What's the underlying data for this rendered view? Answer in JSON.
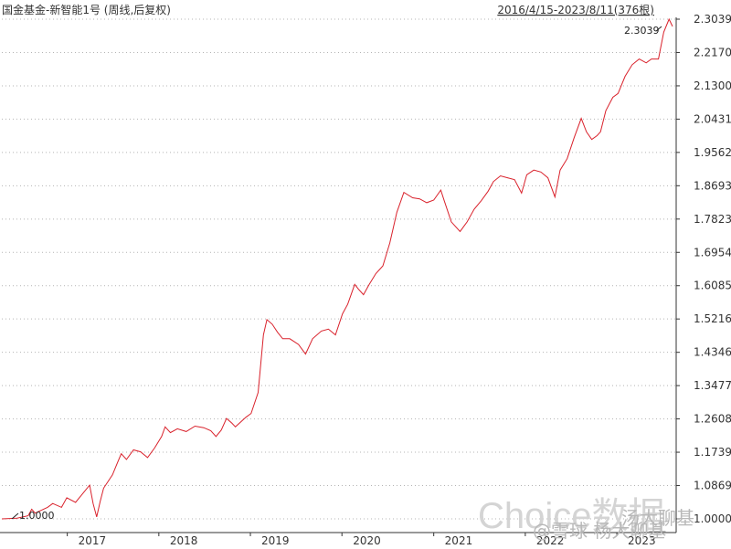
{
  "header": {
    "title": "国金基金-新智能1号 (周线,后复权)",
    "range": "2016/4/15-2023/8/11(376根)"
  },
  "watermark": {
    "brand": "Choice数据",
    "account": "@雪球 杨大聊基",
    "wechat_label": "汤大聊基"
  },
  "colors": {
    "line": "#d9212b",
    "grid": "#b4b4b4",
    "axis": "#333333",
    "background": "#ffffff"
  },
  "chart_data": {
    "type": "line",
    "title": "国金基金-新智能1号 (周线,后复权)",
    "xlabel": "",
    "ylabel": "",
    "grid": true,
    "x_range": [
      "2016-04-15",
      "2023-08-11"
    ],
    "bars_count": 376,
    "ylim": [
      1.0,
      2.3039
    ],
    "y_ticks": [
      "2.3039",
      "2.2170",
      "2.1300",
      "2.0431",
      "1.9562",
      "1.8693",
      "1.7823",
      "1.6954",
      "1.6085",
      "1.5216",
      "1.4346",
      "1.3477",
      "1.2608",
      "1.1739",
      "1.0869",
      "1.0000"
    ],
    "x_ticks": [
      "2017",
      "2018",
      "2019",
      "2020",
      "2021",
      "2022",
      "2023"
    ],
    "annotations": {
      "min_label": "1.0000",
      "max_label": "2.3039"
    },
    "series": [
      {
        "values": [
          [
            "2016-04-15",
            1.0
          ],
          [
            "2016-06-15",
            1.002
          ],
          [
            "2016-07-29",
            1.008
          ],
          [
            "2016-08-12",
            1.025
          ],
          [
            "2016-08-26",
            1.015
          ],
          [
            "2016-10-14",
            1.03
          ],
          [
            "2016-11-04",
            1.04
          ],
          [
            "2016-12-09",
            1.03
          ],
          [
            "2016-12-30",
            1.055
          ],
          [
            "2017-02-03",
            1.043
          ],
          [
            "2017-02-24",
            1.06
          ],
          [
            "2017-03-31",
            1.088
          ],
          [
            "2017-04-14",
            1.04
          ],
          [
            "2017-04-28",
            1.005
          ],
          [
            "2017-05-12",
            1.045
          ],
          [
            "2017-05-26",
            1.08
          ],
          [
            "2017-06-30",
            1.115
          ],
          [
            "2017-07-21",
            1.148
          ],
          [
            "2017-08-04",
            1.17
          ],
          [
            "2017-08-25",
            1.155
          ],
          [
            "2017-09-22",
            1.18
          ],
          [
            "2017-10-20",
            1.175
          ],
          [
            "2017-11-17",
            1.16
          ],
          [
            "2017-12-15",
            1.185
          ],
          [
            "2018-01-12",
            1.215
          ],
          [
            "2018-01-26",
            1.24
          ],
          [
            "2018-02-16",
            1.225
          ],
          [
            "2018-03-16",
            1.235
          ],
          [
            "2018-04-20",
            1.228
          ],
          [
            "2018-05-25",
            1.242
          ],
          [
            "2018-06-29",
            1.238
          ],
          [
            "2018-07-27",
            1.23
          ],
          [
            "2018-08-17",
            1.215
          ],
          [
            "2018-09-07",
            1.232
          ],
          [
            "2018-09-28",
            1.262
          ],
          [
            "2018-10-19",
            1.25
          ],
          [
            "2018-11-02",
            1.24
          ],
          [
            "2018-12-14",
            1.265
          ],
          [
            "2019-01-04",
            1.275
          ],
          [
            "2019-02-01",
            1.33
          ],
          [
            "2019-02-22",
            1.48
          ],
          [
            "2019-03-08",
            1.52
          ],
          [
            "2019-03-29",
            1.508
          ],
          [
            "2019-04-19",
            1.487
          ],
          [
            "2019-05-10",
            1.47
          ],
          [
            "2019-06-07",
            1.47
          ],
          [
            "2019-07-12",
            1.455
          ],
          [
            "2019-08-09",
            1.43
          ],
          [
            "2019-09-06",
            1.47
          ],
          [
            "2019-10-11",
            1.49
          ],
          [
            "2019-11-08",
            1.495
          ],
          [
            "2019-12-06",
            1.48
          ],
          [
            "2020-01-03",
            1.535
          ],
          [
            "2020-01-24",
            1.56
          ],
          [
            "2020-02-21",
            1.612
          ],
          [
            "2020-03-06",
            1.6
          ],
          [
            "2020-03-27",
            1.585
          ],
          [
            "2020-04-17",
            1.61
          ],
          [
            "2020-05-15",
            1.64
          ],
          [
            "2020-06-12",
            1.66
          ],
          [
            "2020-07-10",
            1.72
          ],
          [
            "2020-08-07",
            1.8
          ],
          [
            "2020-09-04",
            1.852
          ],
          [
            "2020-10-09",
            1.838
          ],
          [
            "2020-11-06",
            1.835
          ],
          [
            "2020-12-04",
            1.825
          ],
          [
            "2021-01-01",
            1.832
          ],
          [
            "2021-01-29",
            1.858
          ],
          [
            "2021-02-12",
            1.83
          ],
          [
            "2021-03-12",
            1.775
          ],
          [
            "2021-04-16",
            1.75
          ],
          [
            "2021-05-14",
            1.775
          ],
          [
            "2021-06-11",
            1.808
          ],
          [
            "2021-07-09",
            1.83
          ],
          [
            "2021-08-06",
            1.855
          ],
          [
            "2021-08-27",
            1.88
          ],
          [
            "2021-09-24",
            1.895
          ],
          [
            "2021-10-22",
            1.89
          ],
          [
            "2021-11-19",
            1.885
          ],
          [
            "2021-12-17",
            1.85
          ],
          [
            "2022-01-07",
            1.898
          ],
          [
            "2022-02-04",
            1.91
          ],
          [
            "2022-03-04",
            1.905
          ],
          [
            "2022-04-01",
            1.89
          ],
          [
            "2022-04-29",
            1.84
          ],
          [
            "2022-05-20",
            1.91
          ],
          [
            "2022-06-17",
            1.94
          ],
          [
            "2022-07-15",
            1.995
          ],
          [
            "2022-08-12",
            2.045
          ],
          [
            "2022-09-02",
            2.01
          ],
          [
            "2022-09-23",
            1.99
          ],
          [
            "2022-10-14",
            2.0
          ],
          [
            "2022-10-28",
            2.01
          ],
          [
            "2022-11-18",
            2.065
          ],
          [
            "2022-12-16",
            2.1
          ],
          [
            "2023-01-06",
            2.11
          ],
          [
            "2023-02-03",
            2.155
          ],
          [
            "2023-03-03",
            2.185
          ],
          [
            "2023-03-31",
            2.2
          ],
          [
            "2023-04-28",
            2.19
          ],
          [
            "2023-05-19",
            2.2
          ],
          [
            "2023-06-16",
            2.2
          ],
          [
            "2023-07-07",
            2.27
          ],
          [
            "2023-07-28",
            2.3039
          ],
          [
            "2023-08-11",
            2.285
          ]
        ]
      }
    ]
  }
}
